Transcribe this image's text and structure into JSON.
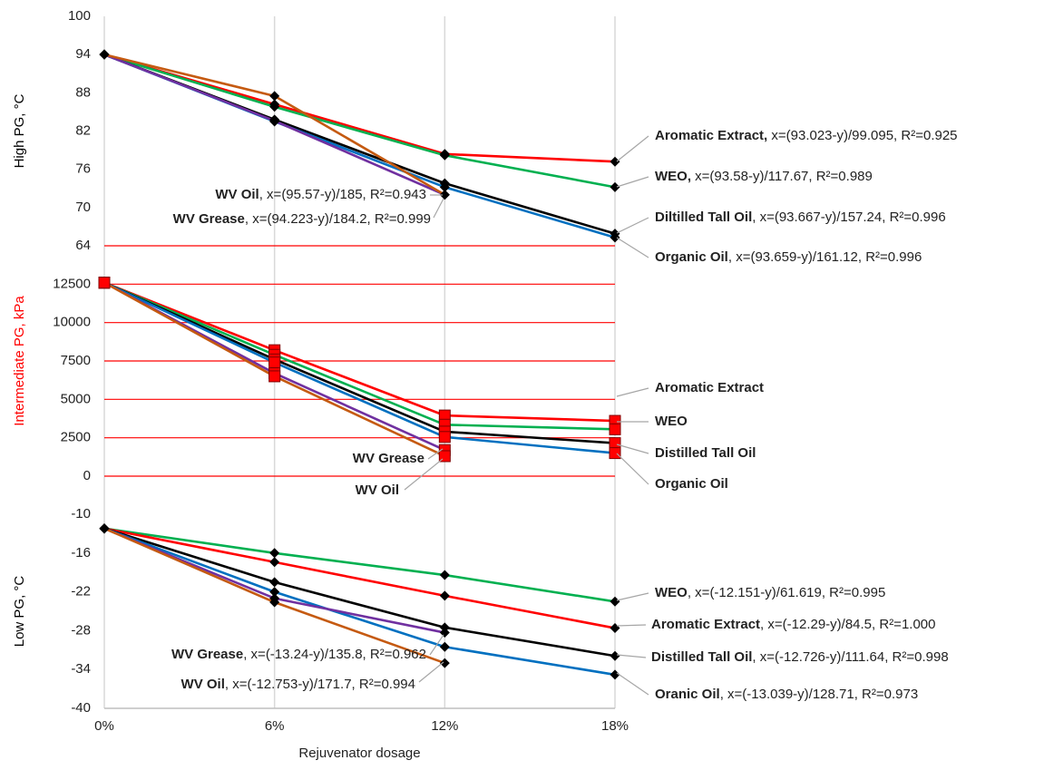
{
  "chart_data": [
    {
      "type": "line",
      "y_label": "High PG, °C",
      "y_label_color": "#000000",
      "ylim": [
        64,
        100
      ],
      "yticks": [
        64,
        70,
        76,
        82,
        88,
        94,
        100
      ],
      "grid": false,
      "marker": "diamond",
      "marker_color": "#000000",
      "series": [
        {
          "name": "Aromatic Extract",
          "color": "#ff0000",
          "values": [
            94,
            86.2,
            78.4,
            77.2
          ]
        },
        {
          "name": "WEO",
          "color": "#00b050",
          "values": [
            94,
            85.8,
            78.2,
            73.2
          ]
        },
        {
          "name": "Distilled Tall Oil",
          "color": "#000000",
          "values": [
            94,
            83.8,
            73.8,
            65.9
          ]
        },
        {
          "name": "Organic Oil",
          "color": "#0070c0",
          "values": [
            94,
            83.5,
            73.2,
            65.3
          ]
        },
        {
          "name": "WV Oil",
          "color": "#7030a0",
          "values": [
            94,
            83.6,
            72.0,
            null
          ]
        },
        {
          "name": "WV Grease",
          "color": "#c55a11",
          "values": [
            94,
            87.5,
            72.0,
            null
          ]
        }
      ],
      "annotations": [
        {
          "name": "Aromatic Extract,",
          "text": " x=(93.023-y)/99.095, R²=0.925"
        },
        {
          "name": "WEO,",
          "text": " x=(93.58-y)/117.67, R²=0.989"
        },
        {
          "name": "Diltilled Tall Oil",
          "text": ", x=(93.667-y)/157.24, R²=0.996"
        },
        {
          "name": "Organic Oil",
          "text": ", x=(93.659-y)/161.12, R²=0.996"
        },
        {
          "name": "WV Oil",
          "text": ", x=(95.57-y)/185, R²=0.943"
        },
        {
          "name": "WV Grease",
          "text": ", x=(94.223-y)/184.2, R²=0.999"
        }
      ]
    },
    {
      "type": "line",
      "y_label": "Intermediate PG, kPa",
      "y_label_color": "#ff0000",
      "ylim": [
        0,
        15000
      ],
      "yticks": [
        0,
        2500,
        5000,
        7500,
        10000,
        12500
      ],
      "grid": true,
      "grid_color": "#ff0000",
      "marker": "square",
      "marker_color": "#ff0000",
      "series": [
        {
          "name": "Aromatic Extract",
          "color": "#ff0000",
          "values": [
            12600,
            8200,
            3950,
            3600
          ]
        },
        {
          "name": "WEO",
          "color": "#00b050",
          "values": [
            12600,
            7900,
            3350,
            3050
          ]
        },
        {
          "name": "Distilled Tall Oil",
          "color": "#000000",
          "values": [
            12600,
            7600,
            2900,
            2150
          ]
        },
        {
          "name": "Organic Oil",
          "color": "#0070c0",
          "values": [
            12600,
            7400,
            2550,
            1500
          ]
        },
        {
          "name": "WV Oil",
          "color": "#7030a0",
          "values": [
            12600,
            6700,
            1700,
            null
          ]
        },
        {
          "name": "WV Grease",
          "color": "#c55a11",
          "values": [
            12600,
            6500,
            1300,
            null
          ]
        }
      ],
      "annotations": [
        {
          "name": "Aromatic Extract",
          "text": ""
        },
        {
          "name": "WEO",
          "text": ""
        },
        {
          "name": "Distilled Tall Oil",
          "text": ""
        },
        {
          "name": "Organic Oil",
          "text": ""
        },
        {
          "name": "WV Grease",
          "text": ""
        },
        {
          "name": "WV Oil",
          "text": ""
        }
      ]
    },
    {
      "type": "line",
      "y_label": "Low PG, °C",
      "y_label_color": "#000000",
      "ylim": [
        -40,
        -10
      ],
      "yticks": [
        -40,
        -34,
        -28,
        -22,
        -16,
        -10
      ],
      "grid": false,
      "marker": "diamond",
      "marker_color": "#000000",
      "categories": [
        "0%",
        "6%",
        "12%",
        "18%"
      ],
      "x_label": "Rejuvenator dosage",
      "series": [
        {
          "name": "WEO",
          "color": "#00b050",
          "values": [
            -12.2,
            -16.0,
            -19.4,
            -23.5
          ]
        },
        {
          "name": "Aromatic Extract",
          "color": "#ff0000",
          "values": [
            -12.2,
            -17.4,
            -22.6,
            -27.6
          ]
        },
        {
          "name": "Distilled Tall Oil",
          "color": "#000000",
          "values": [
            -12.2,
            -20.5,
            -27.5,
            -31.9
          ]
        },
        {
          "name": "Organic Oil",
          "color": "#0070c0",
          "values": [
            -12.2,
            -22.0,
            -30.5,
            -34.8
          ]
        },
        {
          "name": "WV Oil",
          "color": "#7030a0",
          "values": [
            -12.2,
            -23.0,
            -28.3,
            null
          ]
        },
        {
          "name": "WV Grease",
          "color": "#c55a11",
          "values": [
            -12.2,
            -23.6,
            -33.0,
            null
          ]
        }
      ],
      "annotations": [
        {
          "name": "WEO",
          "text": ", x=(-12.151-y)/61.619, R²=0.995"
        },
        {
          "name": "Aromatic Extract",
          "text": ", x=(-12.29-y)/84.5, R²=1.000"
        },
        {
          "name": "Distilled Tall Oil",
          "text": ", x=(-12.726-y)/111.64, R²=0.998"
        },
        {
          "name": "Oranic Oil",
          "text": ", x=(-13.039-y)/128.71, R²=0.973"
        },
        {
          "name": "WV Grease",
          "text": ", x=(-13.24-y)/135.8, R²=0.962"
        },
        {
          "name": "WV Oil",
          "text": ", x=(-12.753-y)/171.7, R²=0.994"
        }
      ]
    }
  ]
}
